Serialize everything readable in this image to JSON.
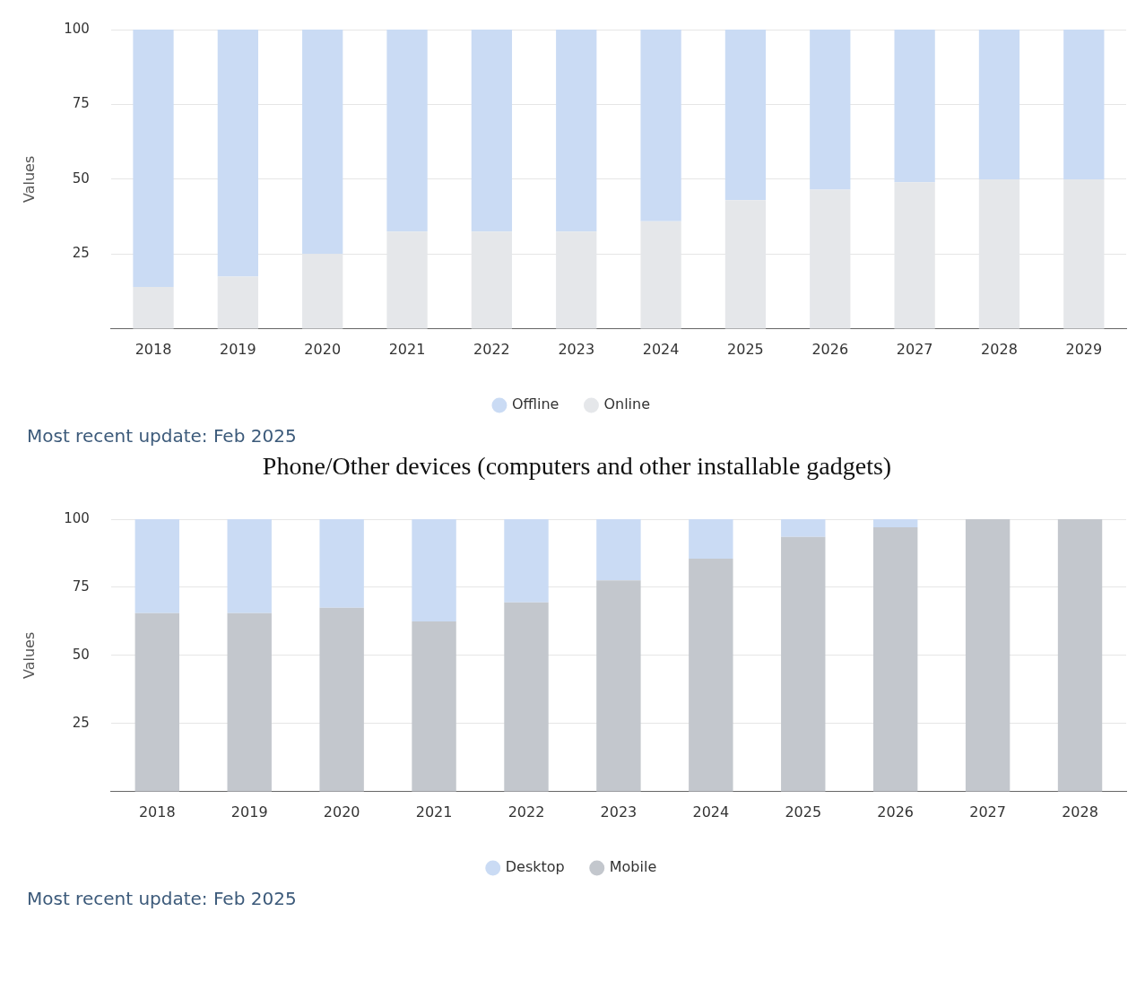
{
  "chart_data": [
    {
      "type": "bar",
      "stacked": true,
      "ylabel": "Values",
      "categories": [
        "2018",
        "2019",
        "2020",
        "2021",
        "2022",
        "2023",
        "2024",
        "2025",
        "2026",
        "2027",
        "2028",
        "2029"
      ],
      "ylim": [
        0,
        100
      ],
      "yticks": [
        25,
        50,
        75,
        100
      ],
      "grid": "y",
      "legend": "bottom",
      "annotations": [
        "Most recent update: Feb 2025"
      ],
      "series": [
        {
          "name": "Online",
          "color": "#e5e7ea",
          "values": [
            14,
            17.5,
            25,
            32.5,
            32.5,
            32.5,
            36,
            43,
            46.5,
            49,
            50,
            50
          ]
        },
        {
          "name": "Offline",
          "color": "#cadbf4",
          "values": [
            86,
            82.5,
            75,
            67.5,
            67.5,
            67.5,
            64,
            57,
            53.5,
            51,
            50,
            50
          ]
        }
      ]
    },
    {
      "type": "bar",
      "stacked": true,
      "title": "Phone/Other devices (computers and other installable gadgets)",
      "ylabel": "Values",
      "categories": [
        "2018",
        "2019",
        "2020",
        "2021",
        "2022",
        "2023",
        "2024",
        "2025",
        "2026",
        "2027",
        "2028"
      ],
      "ylim": [
        0,
        100
      ],
      "yticks": [
        25,
        50,
        75,
        100
      ],
      "grid": "y",
      "legend": "bottom",
      "annotations": [
        "Most recent update: Feb 2025"
      ],
      "series": [
        {
          "name": "Mobile",
          "color": "#c3c7cd",
          "values": [
            65.5,
            65.5,
            67.5,
            62.5,
            69.5,
            77.5,
            85.5,
            93.5,
            97,
            100,
            100
          ]
        },
        {
          "name": "Desktop",
          "color": "#cadbf4",
          "values": [
            34.5,
            34.5,
            32.5,
            37.5,
            30.5,
            22.5,
            14.5,
            6.5,
            3,
            0,
            0
          ]
        }
      ]
    }
  ]
}
